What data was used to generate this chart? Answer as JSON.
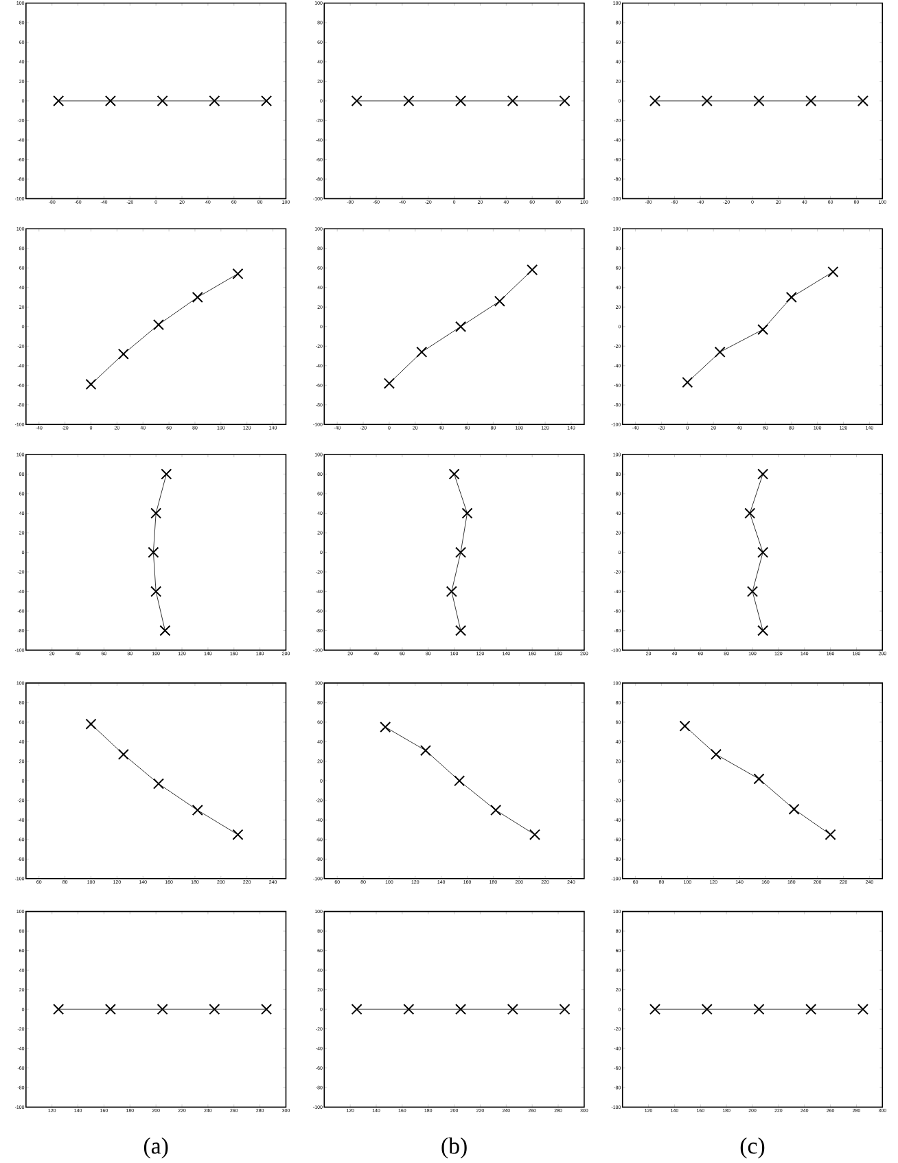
{
  "chart_data": [
    {
      "type": "line",
      "x": [
        -75,
        -35,
        5,
        45,
        85
      ],
      "values": [
        0,
        0,
        0,
        0,
        0
      ],
      "color": "#000000",
      "marker": "cross",
      "xlim": [
        -100,
        100
      ],
      "xticks": [
        -80,
        -60,
        -40,
        -20,
        0,
        20,
        40,
        60,
        80,
        100
      ],
      "ylim": [
        -100,
        100
      ],
      "yticks": [
        -100,
        -80,
        -60,
        -40,
        -20,
        0,
        20,
        40,
        60,
        80,
        100
      ]
    },
    {
      "type": "line",
      "x": [
        -75,
        -35,
        5,
        45,
        85
      ],
      "values": [
        0,
        0,
        0,
        0,
        0
      ],
      "color": "#000000",
      "marker": "cross",
      "xlim": [
        -100,
        100
      ],
      "xticks": [
        -80,
        -60,
        -40,
        -20,
        0,
        20,
        40,
        60,
        80,
        100
      ],
      "ylim": [
        -100,
        100
      ],
      "yticks": [
        -100,
        -80,
        -60,
        -40,
        -20,
        0,
        20,
        40,
        60,
        80,
        100
      ]
    },
    {
      "type": "line",
      "x": [
        -75,
        -35,
        5,
        45,
        85
      ],
      "values": [
        0,
        0,
        0,
        0,
        0
      ],
      "color": "#000000",
      "marker": "cross",
      "xlim": [
        -100,
        100
      ],
      "xticks": [
        -80,
        -60,
        -40,
        -20,
        0,
        20,
        40,
        60,
        80,
        100
      ],
      "ylim": [
        -100,
        100
      ],
      "yticks": [
        -100,
        -80,
        -60,
        -40,
        -20,
        0,
        20,
        40,
        60,
        80,
        100
      ]
    },
    {
      "type": "line",
      "x": [
        0,
        25,
        52,
        82,
        113
      ],
      "values": [
        -59,
        -28,
        2,
        30,
        54
      ],
      "color": "#000000",
      "marker": "cross",
      "xlim": [
        -50,
        150
      ],
      "xticks": [
        -40,
        -20,
        0,
        20,
        40,
        60,
        80,
        100,
        120,
        140
      ],
      "ylim": [
        -100,
        100
      ],
      "yticks": [
        -100,
        -80,
        -60,
        -40,
        -20,
        0,
        20,
        40,
        60,
        80,
        100
      ]
    },
    {
      "type": "line",
      "x": [
        0,
        25,
        55,
        85,
        110
      ],
      "values": [
        -58,
        -26,
        0,
        26,
        58
      ],
      "color": "#000000",
      "marker": "cross",
      "xlim": [
        -50,
        150
      ],
      "xticks": [
        -40,
        -20,
        0,
        20,
        40,
        60,
        80,
        100,
        120,
        140
      ],
      "ylim": [
        -100,
        100
      ],
      "yticks": [
        -100,
        -80,
        -60,
        -40,
        -20,
        0,
        20,
        40,
        60,
        80,
        100
      ]
    },
    {
      "type": "line",
      "x": [
        0,
        25,
        58,
        80,
        112
      ],
      "values": [
        -57,
        -26,
        -3,
        30,
        56
      ],
      "color": "#000000",
      "marker": "cross",
      "xlim": [
        -50,
        150
      ],
      "xticks": [
        -40,
        -20,
        0,
        20,
        40,
        60,
        80,
        100,
        120,
        140
      ],
      "ylim": [
        -100,
        100
      ],
      "yticks": [
        -100,
        -80,
        -60,
        -40,
        -20,
        0,
        20,
        40,
        60,
        80,
        100
      ]
    },
    {
      "type": "line",
      "x": [
        107,
        100,
        98,
        100,
        108
      ],
      "values": [
        -80,
        -40,
        0,
        40,
        80
      ],
      "color": "#000000",
      "marker": "cross",
      "xlim": [
        0,
        200
      ],
      "xticks": [
        20,
        40,
        60,
        80,
        100,
        120,
        140,
        160,
        180,
        200
      ],
      "ylim": [
        -100,
        100
      ],
      "yticks": [
        -100,
        -80,
        -60,
        -40,
        -20,
        0,
        20,
        40,
        60,
        80,
        100
      ]
    },
    {
      "type": "line",
      "x": [
        105,
        98,
        105,
        110,
        100
      ],
      "values": [
        -80,
        -40,
        0,
        40,
        80
      ],
      "color": "#000000",
      "marker": "cross",
      "xlim": [
        0,
        200
      ],
      "xticks": [
        20,
        40,
        60,
        80,
        100,
        120,
        140,
        160,
        180,
        200
      ],
      "ylim": [
        -100,
        100
      ],
      "yticks": [
        -100,
        -80,
        -60,
        -40,
        -20,
        0,
        20,
        40,
        60,
        80,
        100
      ]
    },
    {
      "type": "line",
      "x": [
        108,
        100,
        108,
        98,
        108
      ],
      "values": [
        -80,
        -40,
        0,
        40,
        80
      ],
      "color": "#000000",
      "marker": "cross",
      "xlim": [
        0,
        200
      ],
      "xticks": [
        20,
        40,
        60,
        80,
        100,
        120,
        140,
        160,
        180,
        200
      ],
      "ylim": [
        -100,
        100
      ],
      "yticks": [
        -100,
        -80,
        -60,
        -40,
        -20,
        0,
        20,
        40,
        60,
        80,
        100
      ]
    },
    {
      "type": "line",
      "x": [
        100,
        125,
        152,
        182,
        213
      ],
      "values": [
        58,
        27,
        -3,
        -30,
        -55
      ],
      "color": "#000000",
      "marker": "cross",
      "xlim": [
        50,
        250
      ],
      "xticks": [
        60,
        80,
        100,
        120,
        140,
        160,
        180,
        200,
        220,
        240
      ],
      "ylim": [
        -100,
        100
      ],
      "yticks": [
        -100,
        -80,
        -60,
        -40,
        -20,
        0,
        20,
        40,
        60,
        80,
        100
      ]
    },
    {
      "type": "line",
      "x": [
        97,
        128,
        154,
        182,
        212
      ],
      "values": [
        55,
        31,
        0,
        -30,
        -55
      ],
      "color": "#000000",
      "marker": "cross",
      "xlim": [
        50,
        250
      ],
      "xticks": [
        60,
        80,
        100,
        120,
        140,
        160,
        180,
        200,
        220,
        240
      ],
      "ylim": [
        -100,
        100
      ],
      "yticks": [
        -100,
        -80,
        -60,
        -40,
        -20,
        0,
        20,
        40,
        60,
        80,
        100
      ]
    },
    {
      "type": "line",
      "x": [
        98,
        122,
        155,
        182,
        210
      ],
      "values": [
        56,
        27,
        2,
        -29,
        -55
      ],
      "color": "#000000",
      "marker": "cross",
      "xlim": [
        50,
        250
      ],
      "xticks": [
        60,
        80,
        100,
        120,
        140,
        160,
        180,
        200,
        220,
        240
      ],
      "ylim": [
        -100,
        100
      ],
      "yticks": [
        -100,
        -80,
        -60,
        -40,
        -20,
        0,
        20,
        40,
        60,
        80,
        100
      ]
    },
    {
      "type": "line",
      "x": [
        125,
        165,
        205,
        245,
        285
      ],
      "values": [
        0,
        0,
        0,
        0,
        0
      ],
      "color": "#000000",
      "marker": "cross",
      "xlim": [
        100,
        300
      ],
      "xticks": [
        120,
        140,
        160,
        180,
        200,
        220,
        240,
        260,
        280,
        300
      ],
      "ylim": [
        -100,
        100
      ],
      "yticks": [
        -100,
        -80,
        -60,
        -40,
        -20,
        0,
        20,
        40,
        60,
        80,
        100
      ],
      "xlabel": "(a)"
    },
    {
      "type": "line",
      "x": [
        125,
        165,
        205,
        245,
        285
      ],
      "values": [
        0,
        0,
        0,
        0,
        0
      ],
      "color": "#000000",
      "marker": "cross",
      "xlim": [
        100,
        300
      ],
      "xticks": [
        120,
        140,
        160,
        180,
        200,
        220,
        240,
        260,
        280,
        300
      ],
      "ylim": [
        -100,
        100
      ],
      "yticks": [
        -100,
        -80,
        -60,
        -40,
        -20,
        0,
        20,
        40,
        60,
        80,
        100
      ],
      "xlabel": "(b)"
    },
    {
      "type": "line",
      "x": [
        125,
        165,
        205,
        245,
        285
      ],
      "values": [
        0,
        0,
        0,
        0,
        0
      ],
      "color": "#000000",
      "marker": "cross",
      "xlim": [
        100,
        300
      ],
      "xticks": [
        120,
        140,
        160,
        180,
        200,
        220,
        240,
        260,
        280,
        300
      ],
      "ylim": [
        -100,
        100
      ],
      "yticks": [
        -100,
        -80,
        -60,
        -40,
        -20,
        0,
        20,
        40,
        60,
        80,
        100
      ],
      "xlabel": "(c)"
    }
  ]
}
